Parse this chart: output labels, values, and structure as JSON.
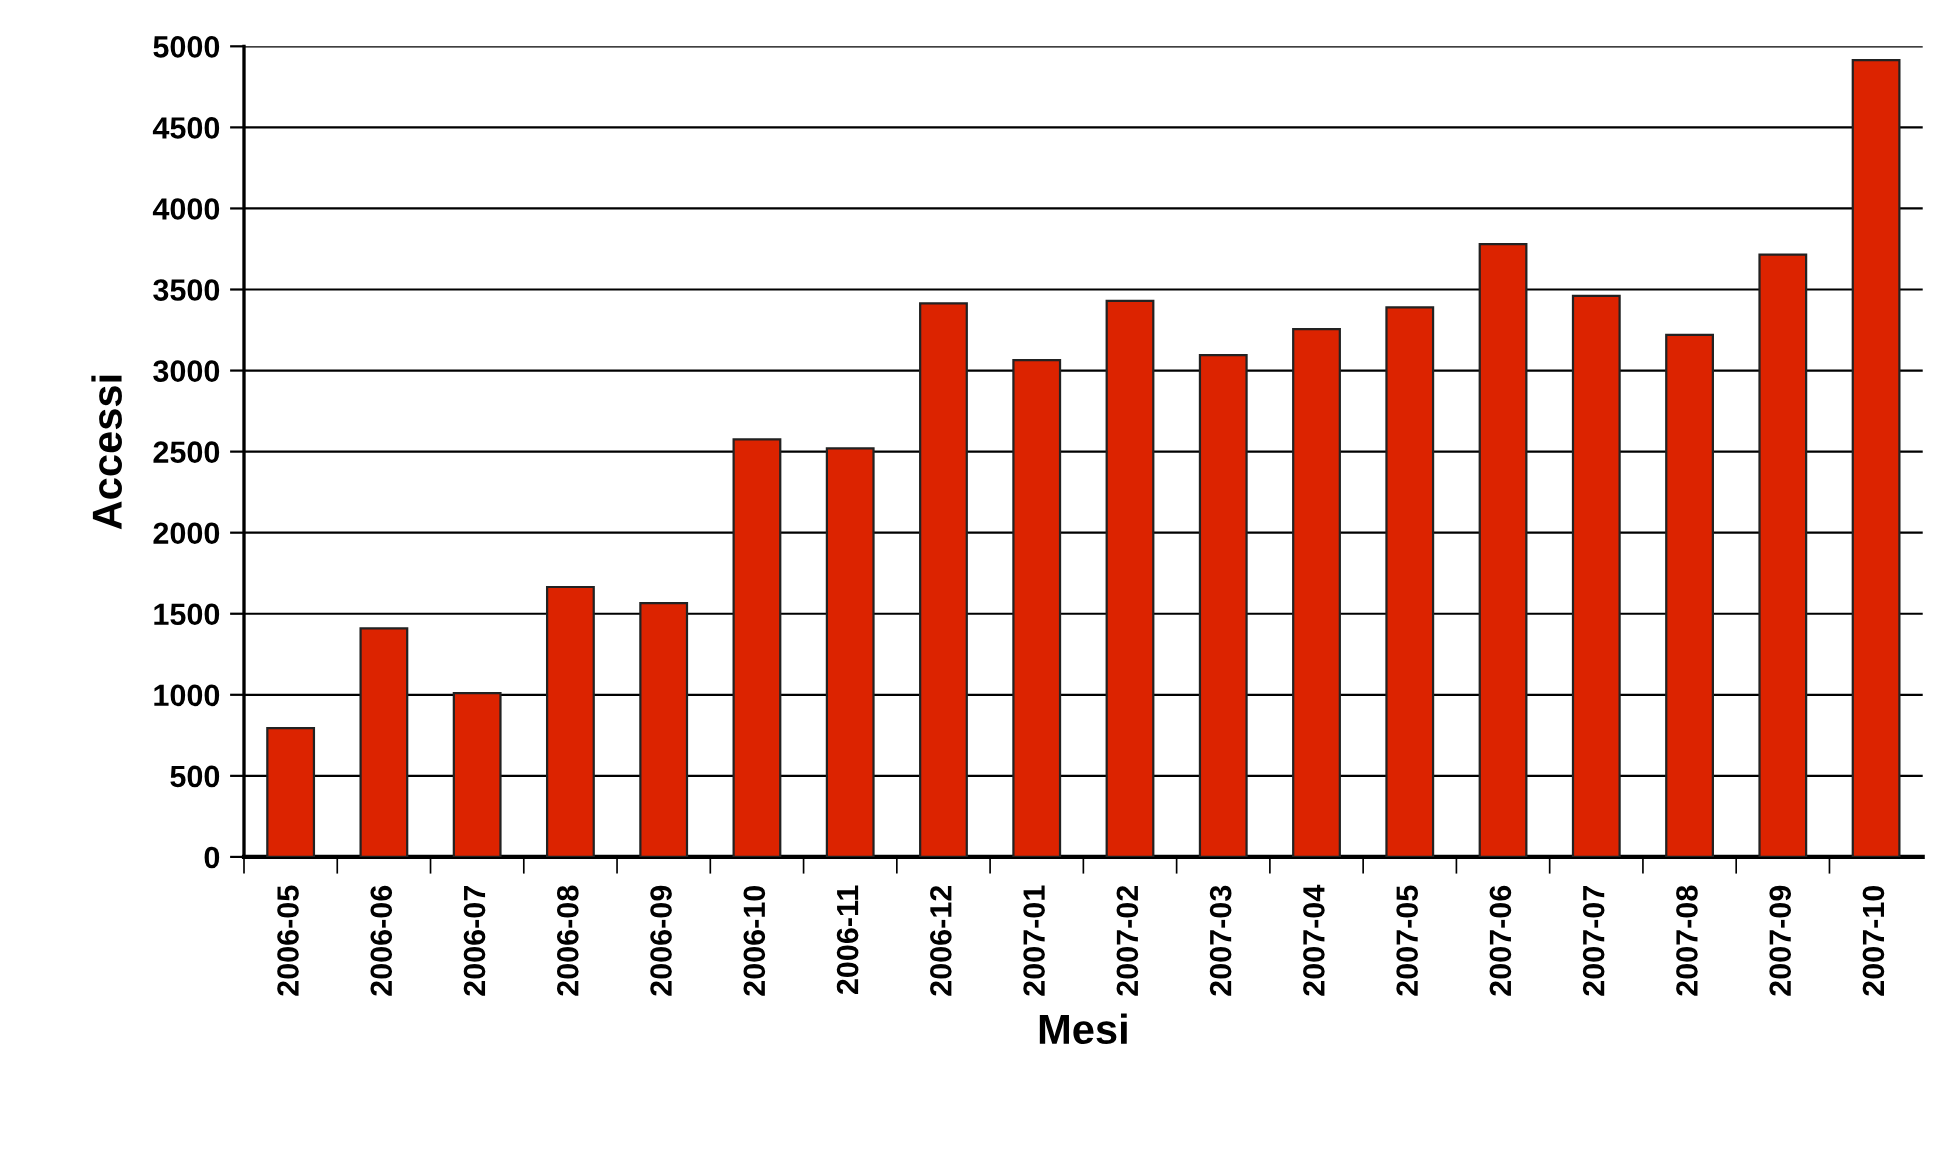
{
  "chart_data": {
    "type": "bar",
    "xlabel": "Mesi",
    "ylabel": "Accessi",
    "categories": [
      "2006-05",
      "2006-06",
      "2006-07",
      "2006-08",
      "2006-09",
      "2006-10",
      "2006-11",
      "2006-12",
      "2007-01",
      "2007-02",
      "2007-03",
      "2007-04",
      "2007-05",
      "2007-06",
      "2007-07",
      "2007-08",
      "2007-09",
      "2007-10"
    ],
    "values": [
      795,
      1410,
      1010,
      1665,
      1565,
      2575,
      2520,
      3415,
      3065,
      3430,
      3095,
      3255,
      3390,
      3780,
      3460,
      3220,
      3715,
      4915
    ],
    "color": "#dc2300",
    "ylim": [
      0,
      5000
    ],
    "yticks": [
      0,
      500,
      1000,
      1500,
      2000,
      2500,
      3000,
      3500,
      4000,
      4500,
      5000
    ],
    "grid": "y"
  }
}
